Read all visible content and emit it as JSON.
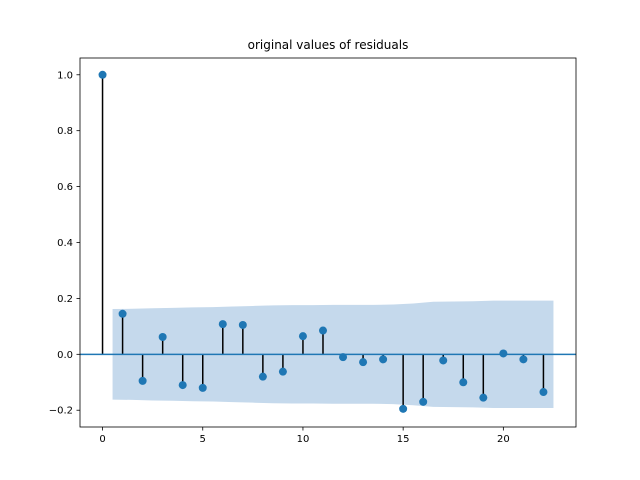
{
  "chart_data": {
    "type": "stem",
    "title": "original values of residuals",
    "xlabel": "",
    "ylabel": "",
    "xlim": [
      -1.125,
      23.625
    ],
    "ylim": [
      -0.26,
      1.06
    ],
    "xticks": [
      0,
      5,
      10,
      15,
      20
    ],
    "yticks": [
      -0.2,
      0.0,
      0.2,
      0.4,
      0.6,
      0.8,
      1.0
    ],
    "ytick_labels": [
      "−0.2",
      "0.0",
      "0.2",
      "0.4",
      "0.6",
      "0.8",
      "1.0"
    ],
    "x": [
      0,
      1,
      2,
      3,
      4,
      5,
      6,
      7,
      8,
      9,
      10,
      11,
      12,
      13,
      14,
      15,
      16,
      17,
      18,
      19,
      20,
      21,
      22
    ],
    "values": [
      1.0,
      0.145,
      -0.095,
      0.062,
      -0.11,
      -0.12,
      0.108,
      0.105,
      -0.08,
      -0.062,
      0.065,
      0.085,
      -0.01,
      -0.028,
      -0.018,
      -0.195,
      -0.17,
      -0.022,
      -0.1,
      -0.155,
      0.003,
      -0.018,
      -0.135
    ],
    "confidence_band": {
      "x": [
        0.5,
        1.5,
        2.5,
        3.5,
        4.5,
        5.5,
        6.5,
        7.5,
        8.5,
        9.5,
        10.5,
        11.5,
        12.5,
        13.5,
        14.5,
        15.5,
        16.5,
        17.5,
        18.5,
        19.5,
        20.5,
        21.5,
        22.5
      ],
      "upper": [
        0.162,
        0.163,
        0.165,
        0.166,
        0.168,
        0.169,
        0.171,
        0.173,
        0.175,
        0.176,
        0.176,
        0.177,
        0.177,
        0.177,
        0.178,
        0.182,
        0.188,
        0.189,
        0.19,
        0.192,
        0.192,
        0.192,
        0.192
      ],
      "lower": [
        -0.162,
        -0.163,
        -0.165,
        -0.166,
        -0.168,
        -0.169,
        -0.171,
        -0.173,
        -0.175,
        -0.176,
        -0.176,
        -0.177,
        -0.177,
        -0.177,
        -0.178,
        -0.182,
        -0.188,
        -0.189,
        -0.19,
        -0.192,
        -0.192,
        -0.192,
        -0.192
      ]
    },
    "zero_line": true,
    "grid": false,
    "colors": {
      "marker": "#1f77b4",
      "stem": "#000000",
      "band": "#c5d9ec",
      "zero_line": "#1f77b4"
    }
  }
}
